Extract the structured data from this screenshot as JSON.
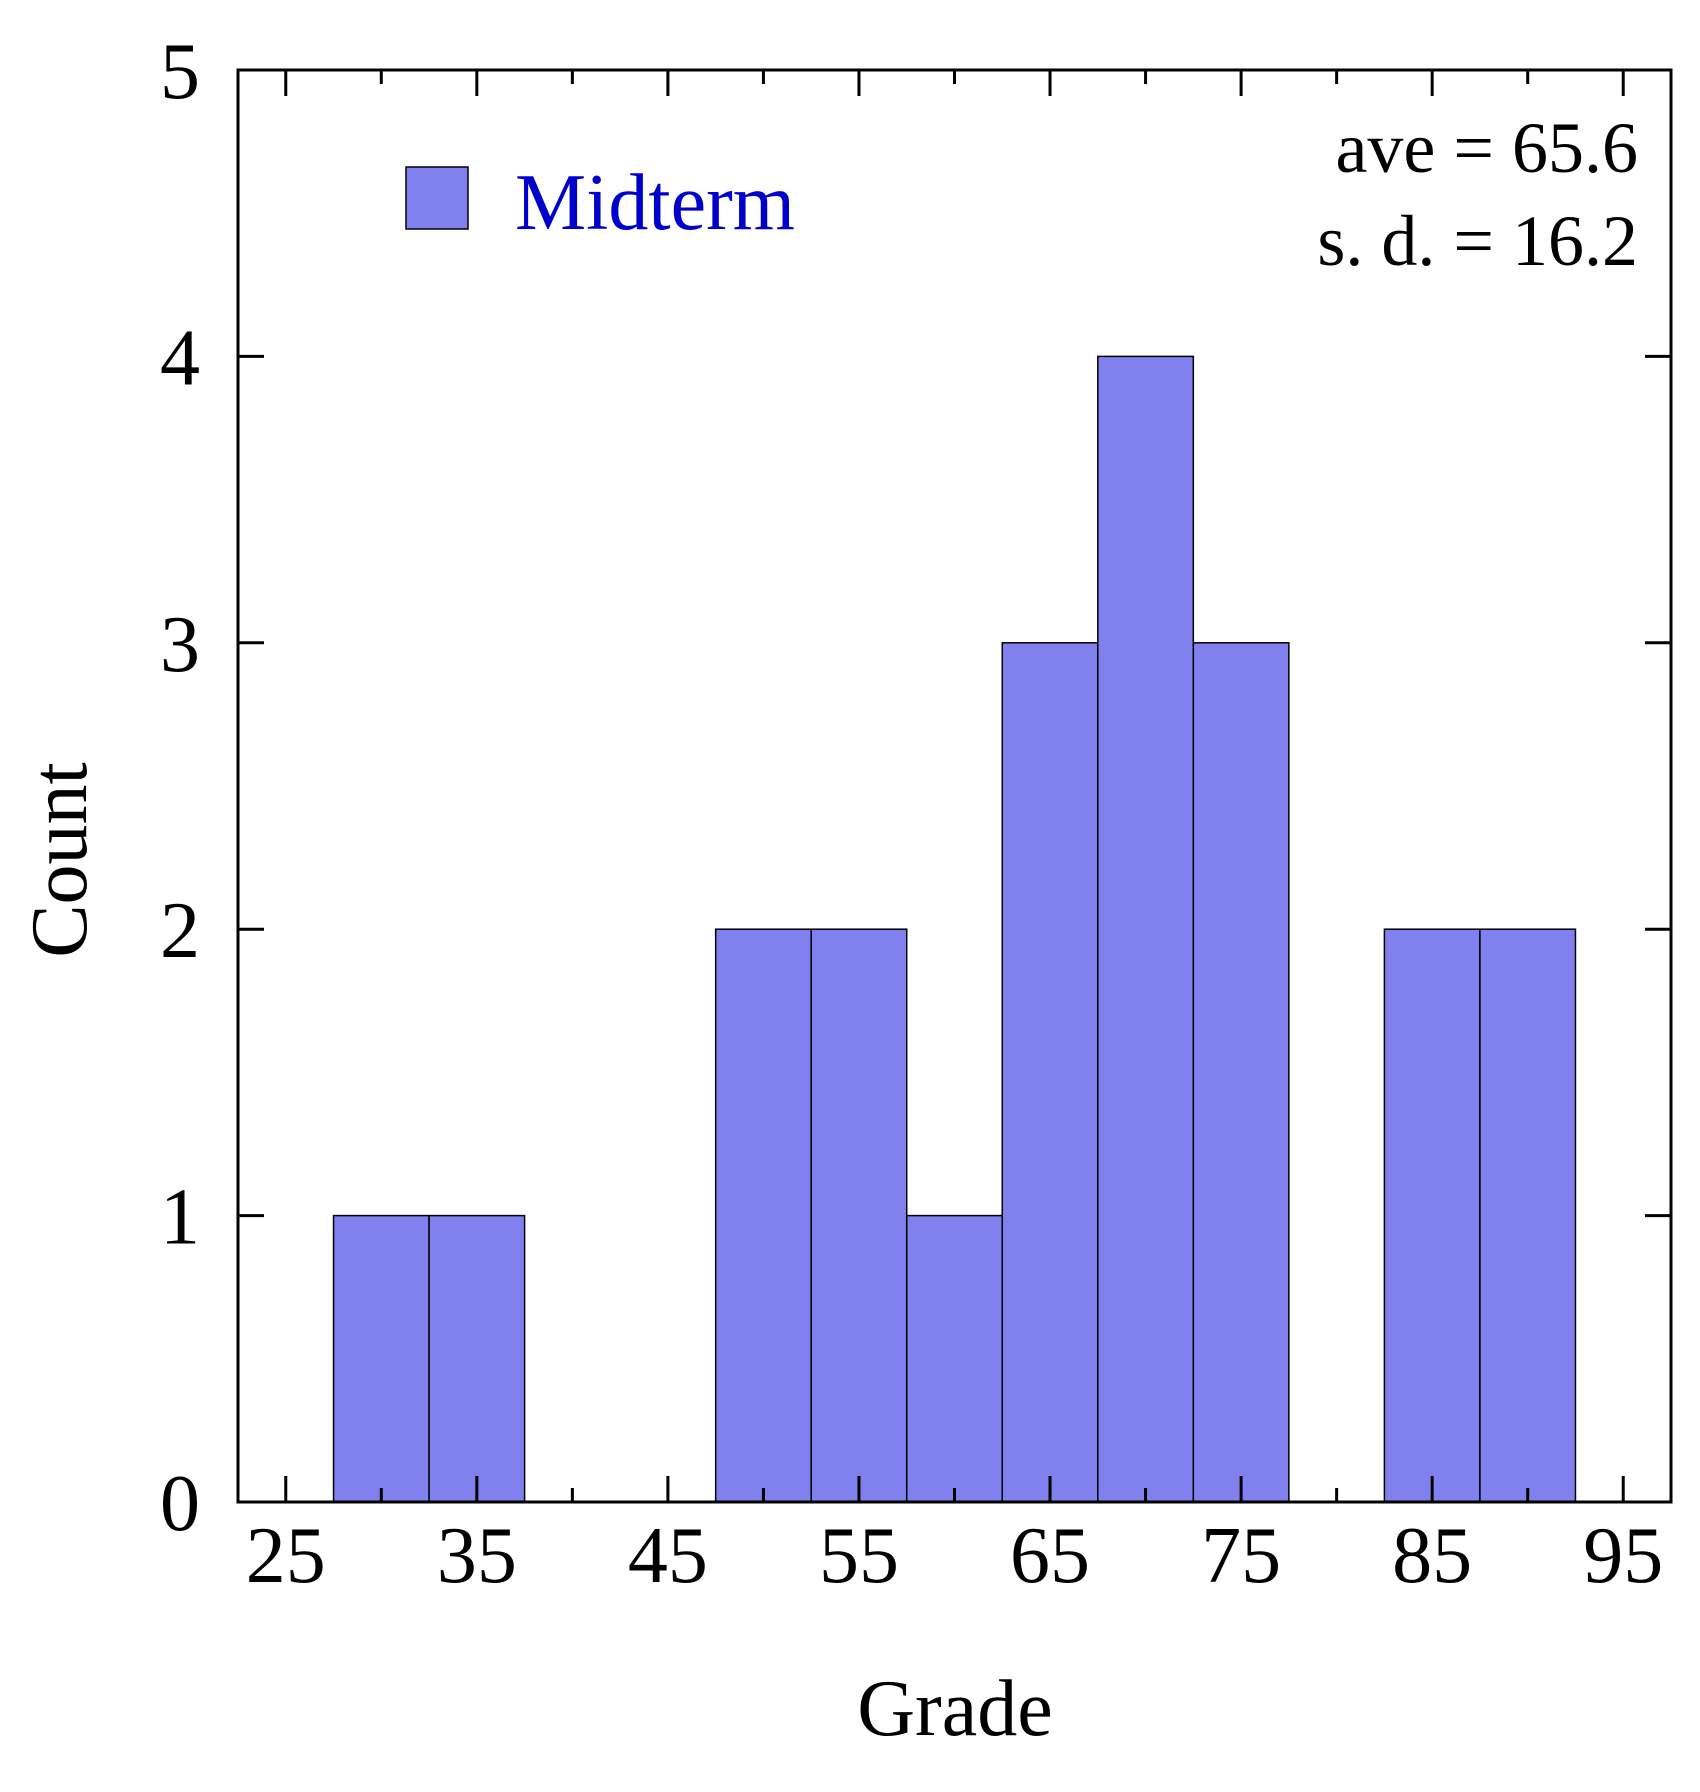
{
  "chart_data": {
    "type": "bar",
    "xlabel": "Grade",
    "ylabel": "Count",
    "xlim": [
      22.5,
      97.5
    ],
    "ylim": [
      0,
      5
    ],
    "bin_width": 5,
    "x_ticks": [
      25,
      35,
      45,
      55,
      65,
      75,
      85,
      95
    ],
    "y_ticks": [
      0,
      1,
      2,
      3,
      4,
      5
    ],
    "series": [
      {
        "name": "Midterm",
        "bins": [
          {
            "x": 30,
            "count": 1
          },
          {
            "x": 35,
            "count": 1
          },
          {
            "x": 50,
            "count": 2
          },
          {
            "x": 55,
            "count": 2
          },
          {
            "x": 60,
            "count": 1
          },
          {
            "x": 65,
            "count": 3
          },
          {
            "x": 70,
            "count": 4
          },
          {
            "x": 75,
            "count": 3
          },
          {
            "x": 85,
            "count": 2
          },
          {
            "x": 90,
            "count": 2
          }
        ]
      }
    ],
    "annotations": [
      "ave = 65.6",
      "s. d. = 16.2"
    ],
    "legend_position": "top-left",
    "grid": false
  },
  "colors": {
    "bar_fill": "#8080ee",
    "bar_stroke": "#000000",
    "legend_text": "#0000cc",
    "axis": "#000000"
  }
}
